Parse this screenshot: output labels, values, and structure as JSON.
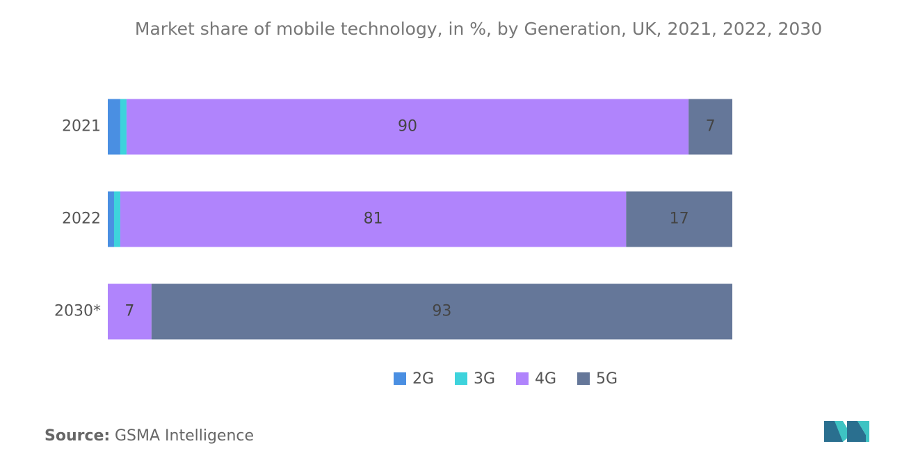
{
  "chart_data": {
    "type": "stacked-bar-horizontal",
    "title": "Market share of mobile technology, in %, by Generation, UK, 2021, 2022, 2030",
    "categories": [
      "2021",
      "2022",
      "2030*"
    ],
    "series": [
      {
        "name": "2G",
        "color": "#4a8fe2",
        "values": [
          2,
          1,
          0
        ]
      },
      {
        "name": "3G",
        "color": "#3ed3dc",
        "values": [
          1,
          1,
          0
        ]
      },
      {
        "name": "4G",
        "color": "#b084fc",
        "values": [
          90,
          81,
          7
        ]
      },
      {
        "name": "5G",
        "color": "#657799",
        "values": [
          7,
          17,
          93
        ]
      }
    ],
    "xlim": [
      0,
      100
    ],
    "source_label": "Source:",
    "source": "GSMA Intelligence"
  }
}
